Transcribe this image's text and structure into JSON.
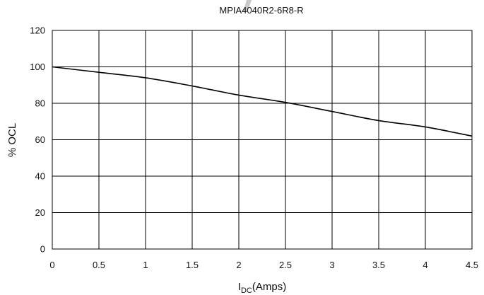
{
  "chart_data": {
    "type": "line",
    "title": "MPIA4040R2-6R8-R",
    "xlabel": {
      "main": "I",
      "sub": "DC",
      "rest": "(Amps)"
    },
    "ylabel": "% OCL",
    "xlim": [
      0,
      4.5
    ],
    "ylim": [
      0,
      120
    ],
    "xticks": [
      "0",
      "0.5",
      "1",
      "1.5",
      "2",
      "2.5",
      "3",
      "3.5",
      "4",
      "4.5"
    ],
    "yticks": [
      "0",
      "20",
      "40",
      "60",
      "80",
      "100",
      "120"
    ],
    "grid": true,
    "legend": "none",
    "series": [
      {
        "color": "#000000",
        "x": [
          0,
          0.5,
          1,
          1.5,
          2,
          2.5,
          3,
          3.5,
          4,
          4.5
        ],
        "y": [
          100,
          97,
          94,
          89.5,
          84.5,
          80.5,
          75.5,
          70.5,
          67,
          62
        ]
      }
    ]
  },
  "colors": {
    "grid": "#000000",
    "watermark": "#c8c8c8"
  },
  "icons": {
    "watermark": "gray-diagonal-stroke"
  }
}
